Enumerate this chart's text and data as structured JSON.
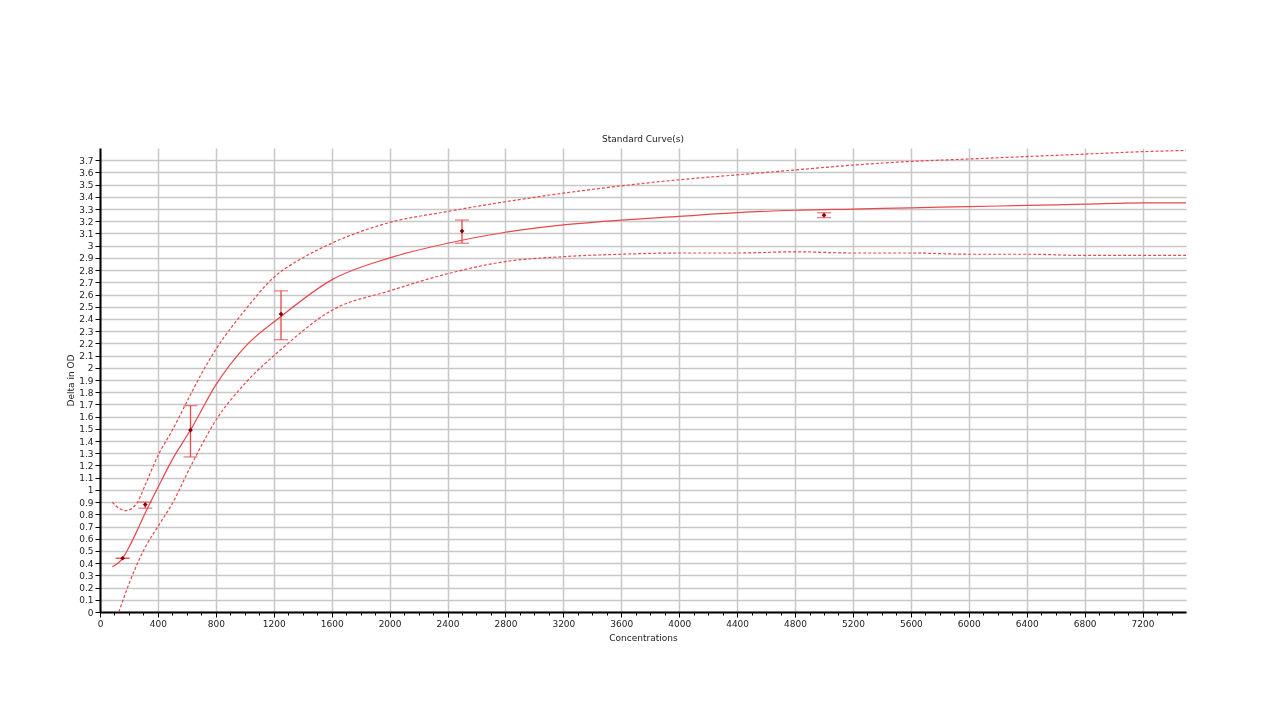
{
  "chart_data": {
    "type": "scatter",
    "title": "Standard Curve(s)",
    "xlabel": "Concentrations",
    "ylabel": "Delta in OD",
    "xlim": [
      0,
      7500
    ],
    "ylim": [
      0,
      3.8
    ],
    "xticks": [
      0,
      {
        "value": 100,
        "label": null
      },
      {
        "value": 200,
        "label": null
      },
      {
        "value": 300,
        "label": null
      },
      400,
      {
        "value": 500,
        "label": null
      },
      {
        "value": 600,
        "label": null
      },
      {
        "value": 700,
        "label": null
      },
      800,
      {
        "value": 900,
        "label": null
      },
      {
        "value": 1000,
        "label": null
      },
      {
        "value": 1100,
        "label": null
      },
      1200,
      {
        "value": 1300,
        "label": null
      },
      {
        "value": 1400,
        "label": null
      },
      {
        "value": 1500,
        "label": null
      },
      1600,
      {
        "value": 1700,
        "label": null
      },
      {
        "value": 1800,
        "label": null
      },
      {
        "value": 1900,
        "label": null
      },
      2000,
      {
        "value": 2100,
        "label": null
      },
      {
        "value": 2200,
        "label": null
      },
      {
        "value": 2300,
        "label": null
      },
      2400,
      {
        "value": 2500,
        "label": null
      },
      {
        "value": 2600,
        "label": null
      },
      {
        "value": 2700,
        "label": null
      },
      2800,
      {
        "value": 2900,
        "label": null
      },
      {
        "value": 3000,
        "label": null
      },
      {
        "value": 3100,
        "label": null
      },
      3200,
      {
        "value": 3300,
        "label": null
      },
      {
        "value": 3400,
        "label": null
      },
      {
        "value": 3500,
        "label": null
      },
      3600,
      {
        "value": 3700,
        "label": null
      },
      {
        "value": 3800,
        "label": null
      },
      {
        "value": 3900,
        "label": null
      },
      4000,
      {
        "value": 4100,
        "label": null
      },
      {
        "value": 4200,
        "label": null
      },
      {
        "value": 4300,
        "label": null
      },
      4400,
      {
        "value": 4500,
        "label": null
      },
      {
        "value": 4600,
        "label": null
      },
      {
        "value": 4700,
        "label": null
      },
      4800,
      {
        "value": 4900,
        "label": null
      },
      {
        "value": 5000,
        "label": null
      },
      {
        "value": 5100,
        "label": null
      },
      5200,
      {
        "value": 5300,
        "label": null
      },
      {
        "value": 5400,
        "label": null
      },
      {
        "value": 5500,
        "label": null
      },
      5600,
      {
        "value": 5700,
        "label": null
      },
      {
        "value": 5800,
        "label": null
      },
      {
        "value": 5900,
        "label": null
      },
      6000,
      {
        "value": 6100,
        "label": null
      },
      {
        "value": 6200,
        "label": null
      },
      {
        "value": 6300,
        "label": null
      },
      6400,
      {
        "value": 6500,
        "label": null
      },
      {
        "value": 6600,
        "label": null
      },
      {
        "value": 6700,
        "label": null
      },
      6800,
      {
        "value": 6900,
        "label": null
      },
      {
        "value": 7000,
        "label": null
      },
      {
        "value": 7100,
        "label": null
      },
      7200,
      {
        "value": 7300,
        "label": null
      },
      {
        "value": 7400,
        "label": null
      }
    ],
    "yticks": [
      0,
      0.1,
      0.2,
      0.3,
      0.4,
      0.5,
      0.6,
      0.7,
      0.8,
      0.9,
      1,
      1.1,
      1.2,
      1.3,
      1.4,
      1.5,
      1.6,
      1.7,
      1.8,
      1.9,
      2,
      2.1,
      2.2,
      2.3,
      2.4,
      2.5,
      2.6,
      2.7,
      2.8,
      2.9,
      3,
      3.1,
      3.2,
      3.3,
      3.4,
      3.5,
      3.6,
      3.7
    ],
    "grid": true,
    "series": [
      {
        "color": "#8b0000",
        "marker": "diamond",
        "x": [
          156.25,
          312.5,
          625,
          1250,
          2500,
          5000
        ],
        "values": [
          0.44,
          0.88,
          1.49,
          2.44,
          3.12,
          3.25
        ],
        "errors": [
          0,
          [
            0.85,
            0.9
          ],
          [
            1.27,
            1.69
          ],
          [
            2.23,
            2.63
          ],
          [
            3.02,
            3.21
          ],
          [
            3.23,
            3.27
          ]
        ]
      },
      {
        "type": "line",
        "color": "#e8474b",
        "line_style": "solid",
        "x": [
          85,
          156,
          200,
          250,
          312,
          400,
          500,
          625,
          800,
          1000,
          1250,
          1600,
          2000,
          2400,
          2800,
          3200,
          3600,
          4000,
          4400,
          4800,
          5200,
          5600,
          6000,
          6400,
          6800,
          7200,
          7500
        ],
        "values": [
          0.37,
          0.44,
          0.53,
          0.65,
          0.81,
          1.02,
          1.25,
          1.49,
          1.86,
          2.17,
          2.42,
          2.72,
          2.9,
          3.02,
          3.11,
          3.17,
          3.21,
          3.24,
          3.27,
          3.29,
          3.3,
          3.31,
          3.32,
          3.33,
          3.34,
          3.35,
          3.35
        ]
      },
      {
        "type": "line",
        "color": "#e8474b",
        "line_style": "dashed",
        "x": [
          85,
          130,
          178,
          254,
          312,
          400,
          500,
          625,
          700,
          800,
          1000,
          1200,
          1400,
          1600,
          2000,
          2400,
          2800,
          3200,
          3600,
          4000,
          4400,
          4800,
          5200,
          5600,
          6000,
          6400,
          6800,
          7200,
          7500
        ],
        "values": [
          0.9,
          0.85,
          0.83,
          0.89,
          1.04,
          1.28,
          1.49,
          1.78,
          1.95,
          2.15,
          2.47,
          2.74,
          2.9,
          3.02,
          3.19,
          3.28,
          3.36,
          3.43,
          3.49,
          3.54,
          3.58,
          3.62,
          3.66,
          3.69,
          3.71,
          3.73,
          3.75,
          3.77,
          3.78
        ]
      },
      {
        "type": "line",
        "color": "#e8474b",
        "line_style": "dashed",
        "x": [
          130,
          200,
          312,
          400,
          500,
          625,
          800,
          1000,
          1250,
          1600,
          2000,
          2400,
          2800,
          3200,
          3600,
          4000,
          4400,
          4800,
          5200,
          5600,
          6000,
          6400,
          6800,
          7200,
          7500
        ],
        "values": [
          0,
          0.23,
          0.53,
          0.7,
          0.89,
          1.19,
          1.57,
          1.87,
          2.15,
          2.47,
          2.63,
          2.77,
          2.87,
          2.91,
          2.93,
          2.94,
          2.94,
          2.95,
          2.94,
          2.94,
          2.93,
          2.93,
          2.92,
          2.92,
          2.92
        ]
      }
    ]
  }
}
